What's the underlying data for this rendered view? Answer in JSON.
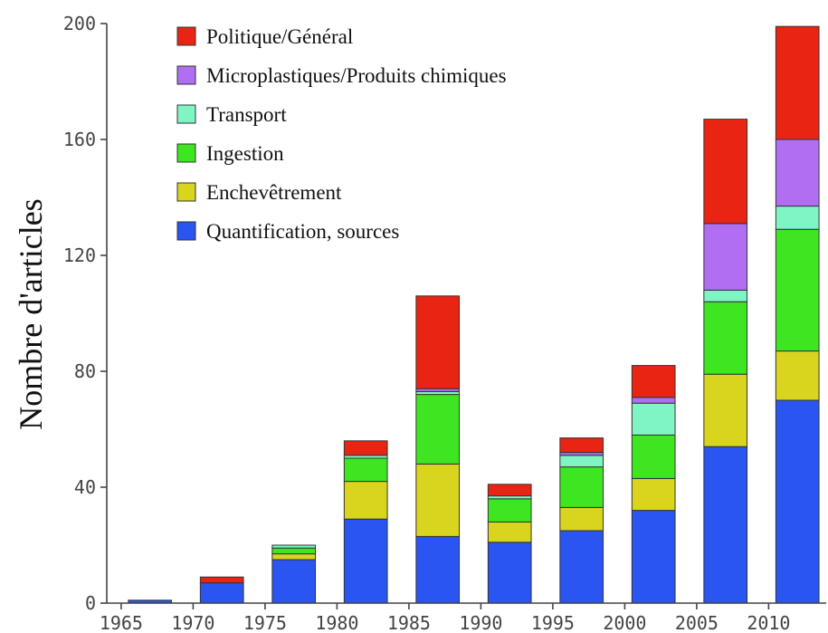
{
  "chart_data": {
    "type": "bar",
    "stacked": true,
    "ylabel": "Nombre d'articles",
    "xlabel": "",
    "ylim": [
      0,
      200
    ],
    "yticks": [
      0,
      40,
      80,
      120,
      160,
      200
    ],
    "xticks": [
      1965,
      1970,
      1975,
      1980,
      1985,
      1990,
      1995,
      2000,
      2005,
      2010
    ],
    "xlim": [
      1964,
      2014
    ],
    "bar_width_years": 3,
    "categories": [
      1967,
      1972,
      1977,
      1982,
      1987,
      1992,
      1997,
      2002,
      2007,
      2012
    ],
    "legend_position": "top-left",
    "series": [
      {
        "name": "Quantification, sources",
        "color": "#2a55f0",
        "values": [
          1,
          7,
          15,
          29,
          23,
          21,
          25,
          32,
          54,
          70
        ]
      },
      {
        "name": "Enchevêtrement",
        "color": "#d9d51f",
        "values": [
          0,
          0,
          2,
          13,
          25,
          7,
          8,
          11,
          25,
          17
        ]
      },
      {
        "name": "Ingestion",
        "color": "#3ee622",
        "values": [
          0,
          0,
          2,
          8,
          24,
          8,
          14,
          15,
          25,
          42
        ]
      },
      {
        "name": "Transport",
        "color": "#80f5c4",
        "values": [
          0,
          0,
          1,
          1,
          1,
          1,
          4,
          11,
          4,
          8
        ]
      },
      {
        "name": "Microplastiques/Produits chimiques",
        "color": "#b06ef2",
        "values": [
          0,
          0,
          0,
          0,
          1,
          0,
          1,
          2,
          23,
          23
        ]
      },
      {
        "name": "Politique/Général",
        "color": "#ea2412",
        "values": [
          0,
          2,
          0,
          5,
          32,
          4,
          5,
          11,
          36,
          39
        ]
      }
    ],
    "legend_order": [
      "Politique/Général",
      "Microplastiques/Produits chimiques",
      "Transport",
      "Ingestion",
      "Enchevêtrement",
      "Quantification, sources"
    ]
  }
}
